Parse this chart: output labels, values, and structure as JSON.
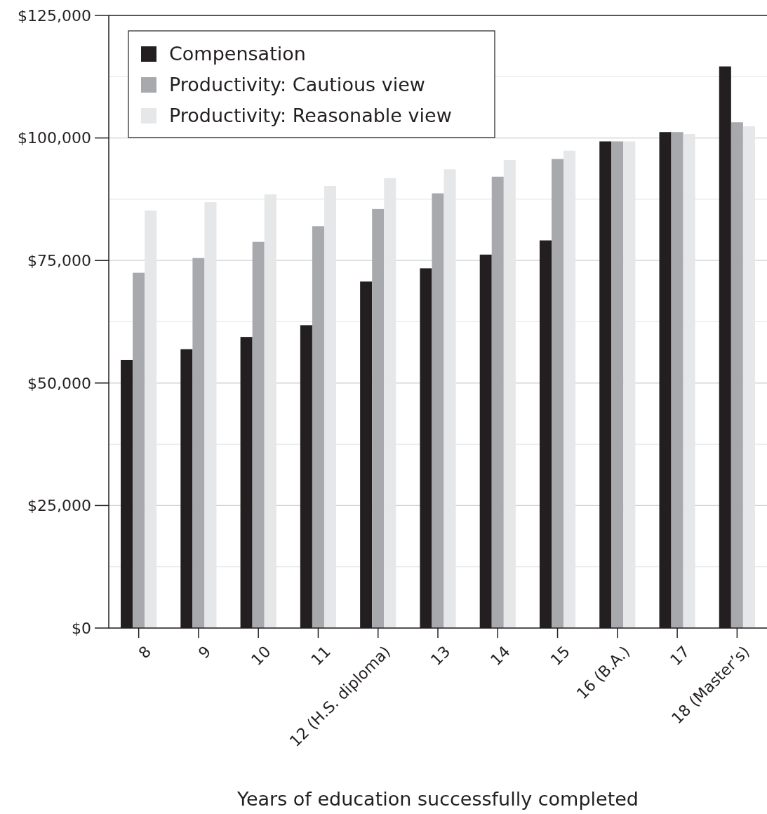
{
  "chart_data": {
    "type": "bar",
    "xlabel": "Years of education successfully completed",
    "categories": [
      "8",
      "9",
      "10",
      "11",
      "12 (H.S. diploma)",
      "13",
      "14",
      "15",
      "16 (B.A.)",
      "17",
      "18 (Master’s)"
    ],
    "series": [
      {
        "name": "Compensation",
        "color": "#231f20",
        "values": [
          54700,
          56900,
          59400,
          61800,
          70700,
          73400,
          76200,
          79100,
          99300,
          101200,
          114600
        ]
      },
      {
        "name": "Productivity: Cautious view",
        "color": "#a7a9ac",
        "values": [
          72500,
          75500,
          78800,
          82000,
          85500,
          88700,
          92100,
          95700,
          99300,
          101200,
          103200
        ]
      },
      {
        "name": "Productivity: Reasonable view",
        "color": "#e6e7e8",
        "values": [
          85200,
          86900,
          88500,
          90200,
          91800,
          93600,
          95500,
          97400,
          99300,
          100800,
          102400
        ]
      }
    ],
    "ylim": [
      0,
      125000
    ],
    "yticks": [
      {
        "value": 0,
        "label": "$0"
      },
      {
        "value": 12500,
        "label": null
      },
      {
        "value": 25000,
        "label": "$25,000"
      },
      {
        "value": 37500,
        "label": null
      },
      {
        "value": 50000,
        "label": "$50,000"
      },
      {
        "value": 62500,
        "label": null
      },
      {
        "value": 75000,
        "label": "$75,000"
      },
      {
        "value": 87500,
        "label": null
      },
      {
        "value": 100000,
        "label": "$100,000"
      },
      {
        "value": 112500,
        "label": null
      },
      {
        "value": 125000,
        "label": "$125,000"
      }
    ],
    "grid": "y",
    "legend": "top left"
  }
}
